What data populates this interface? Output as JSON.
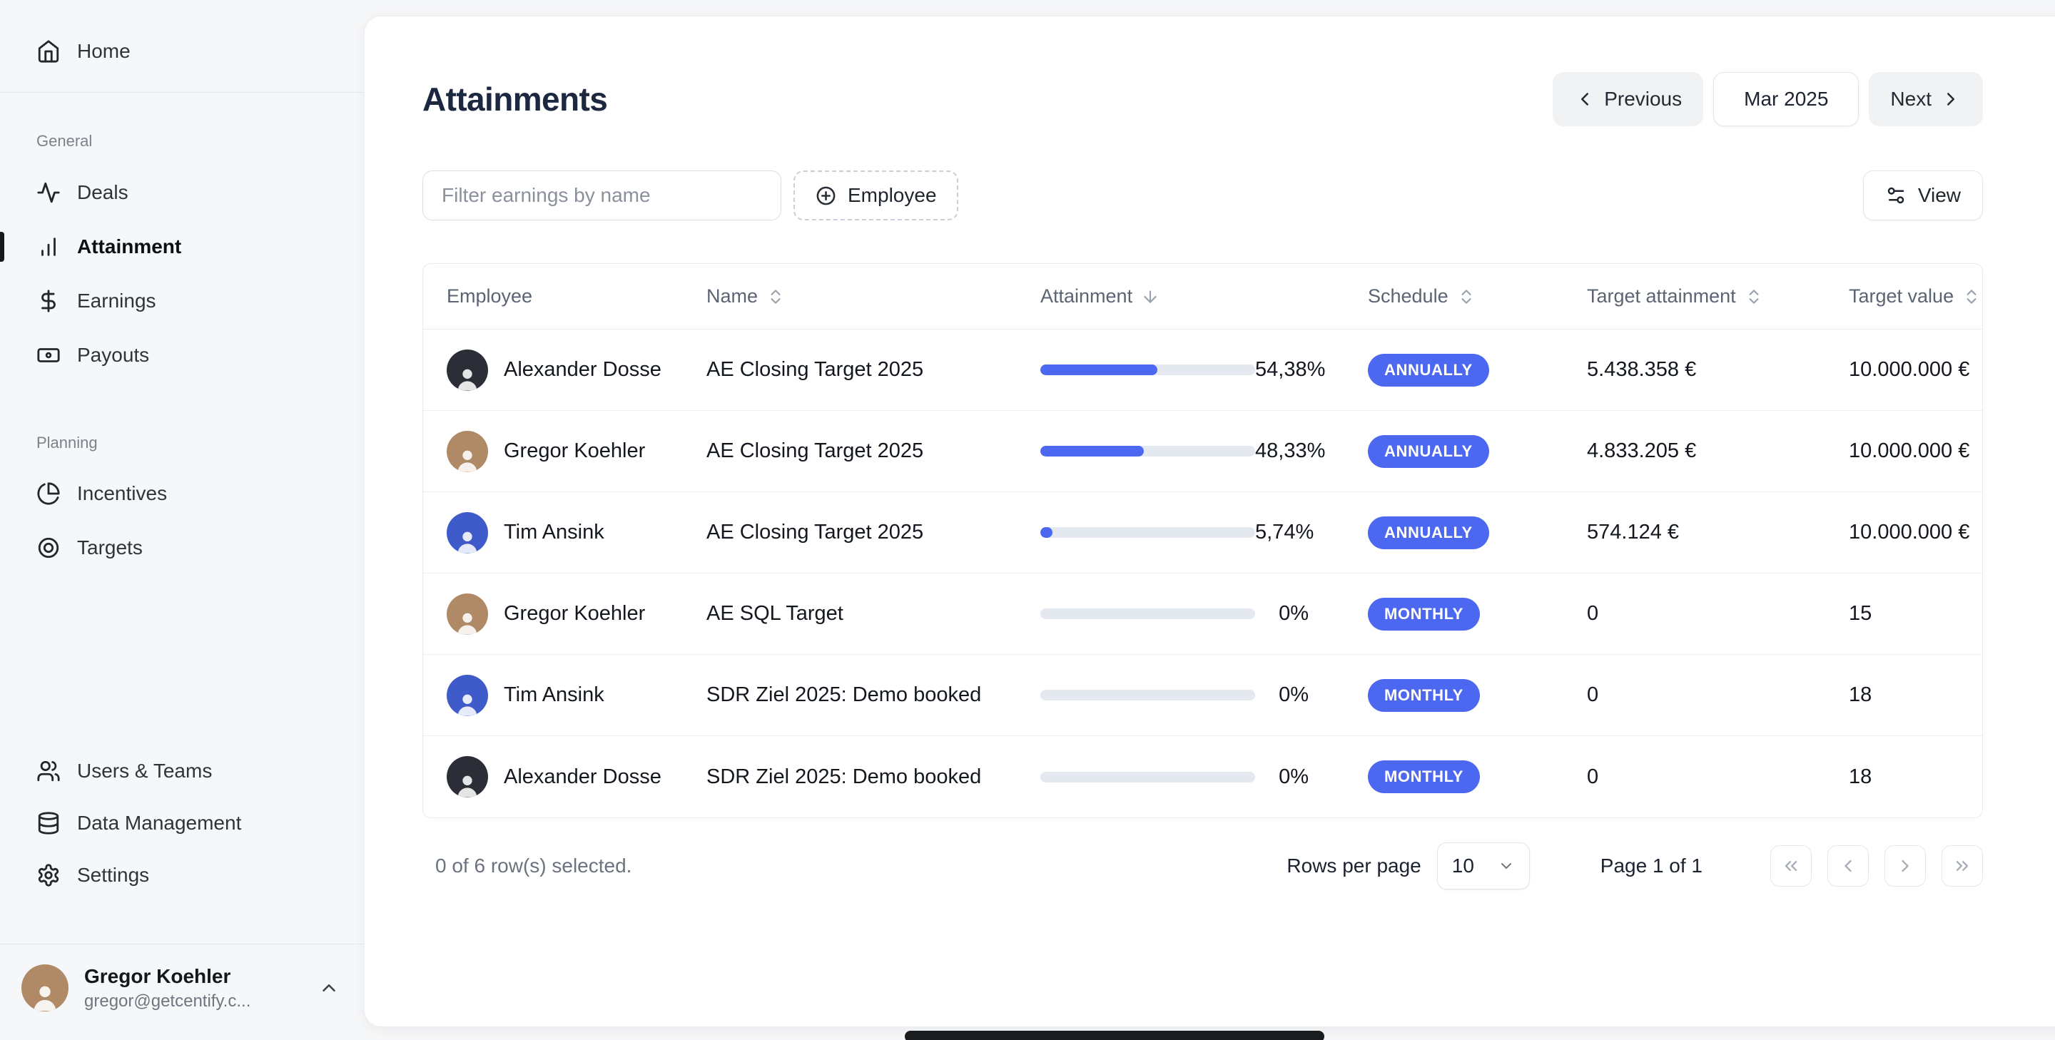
{
  "colors": {
    "accent": "#4c68f0",
    "progress_track": "#e4e9f0",
    "badge": "#4c68f0"
  },
  "avatar_colors": {
    "Alexander Dosse": "#2b2e36",
    "Gregor Koehler": "#b08a67",
    "Tim Ansink": "#3f5bc9"
  },
  "sidebar": {
    "home_label": "Home",
    "sections": [
      {
        "label": "General",
        "items": [
          {
            "label": "Deals",
            "icon": "activity-icon"
          },
          {
            "label": "Attainment",
            "icon": "bar-chart-icon",
            "active": true
          },
          {
            "label": "Earnings",
            "icon": "dollar-icon"
          },
          {
            "label": "Payouts",
            "icon": "banknote-icon"
          }
        ]
      },
      {
        "label": "Planning",
        "items": [
          {
            "label": "Incentives",
            "icon": "pie-chart-icon"
          },
          {
            "label": "Targets",
            "icon": "target-icon"
          }
        ]
      }
    ],
    "bottom_items": [
      {
        "label": "Users & Teams",
        "icon": "users-icon"
      },
      {
        "label": "Data Management",
        "icon": "database-icon"
      },
      {
        "label": "Settings",
        "icon": "gear-icon"
      }
    ],
    "user": {
      "name": "Gregor Koehler",
      "email": "gregor@getcentify.c..."
    }
  },
  "header": {
    "title": "Attainments",
    "previous_label": "Previous",
    "period": "Mar 2025",
    "next_label": "Next"
  },
  "toolbar": {
    "filter_placeholder": "Filter earnings by name",
    "employee_button": "Employee",
    "view_button": "View"
  },
  "table": {
    "columns": [
      "Employee",
      "Name",
      "Attainment",
      "Schedule",
      "Target attainment",
      "Target value"
    ],
    "sorted_column": "Attainment",
    "sorted_direction": "desc",
    "rows": [
      {
        "employee": "Alexander Dosse",
        "name": "AE Closing Target 2025",
        "attainment_pct": 54.38,
        "attainment_label": "54,38%",
        "schedule": "ANNUALLY",
        "target_attainment": "5.438.358 €",
        "target_value": "10.000.000 €"
      },
      {
        "employee": "Gregor Koehler",
        "name": "AE Closing Target 2025",
        "attainment_pct": 48.33,
        "attainment_label": "48,33%",
        "schedule": "ANNUALLY",
        "target_attainment": "4.833.205 €",
        "target_value": "10.000.000 €"
      },
      {
        "employee": "Tim Ansink",
        "name": "AE Closing Target 2025",
        "attainment_pct": 5.74,
        "attainment_label": "5,74%",
        "schedule": "ANNUALLY",
        "target_attainment": "574.124 €",
        "target_value": "10.000.000 €"
      },
      {
        "employee": "Gregor Koehler",
        "name": "AE SQL Target",
        "attainment_pct": 0,
        "attainment_label": "0%",
        "schedule": "MONTHLY",
        "target_attainment": "0",
        "target_value": "15"
      },
      {
        "employee": "Tim Ansink",
        "name": "SDR Ziel 2025: Demo booked",
        "attainment_pct": 0,
        "attainment_label": "0%",
        "schedule": "MONTHLY",
        "target_attainment": "0",
        "target_value": "18"
      },
      {
        "employee": "Alexander Dosse",
        "name": "SDR Ziel 2025: Demo booked",
        "attainment_pct": 0,
        "attainment_label": "0%",
        "schedule": "MONTHLY",
        "target_attainment": "0",
        "target_value": "18"
      }
    ]
  },
  "footer": {
    "selection": "0 of 6 row(s) selected.",
    "rows_per_page_label": "Rows per page",
    "rows_per_page_value": "10",
    "page_label": "Page 1 of 1"
  }
}
